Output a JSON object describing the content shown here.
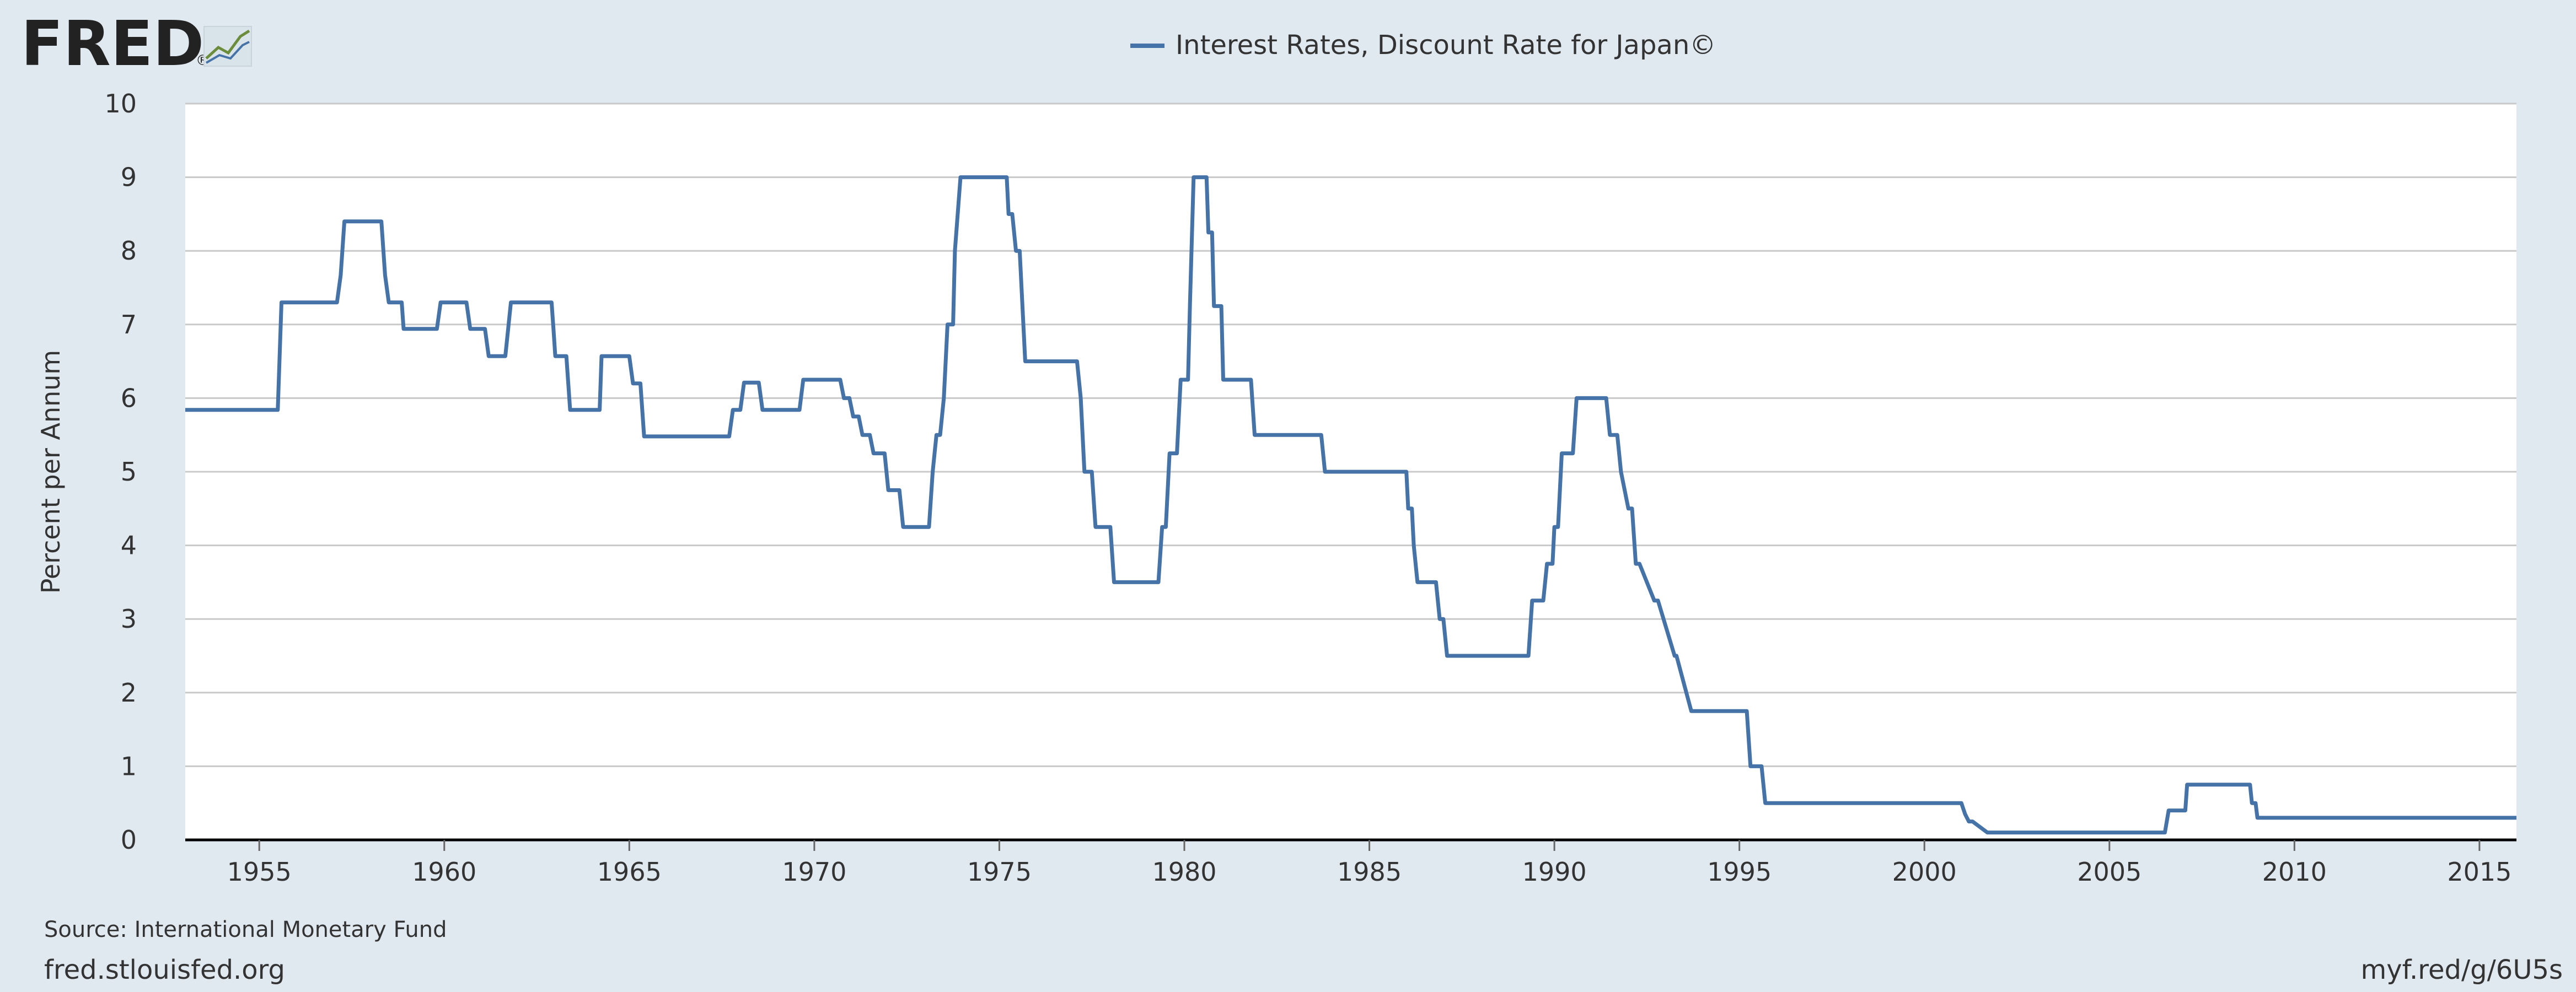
{
  "logo": {
    "text": "FRED",
    "registered": "®"
  },
  "chart_data": {
    "type": "line",
    "title": "",
    "xlabel": "",
    "ylabel": "Percent per Annum",
    "xlim": [
      1953,
      2016
    ],
    "ylim": [
      0,
      10
    ],
    "grid": true,
    "legend_position": "top-center",
    "x_ticks": [
      "1955",
      "1960",
      "1965",
      "1970",
      "1975",
      "1980",
      "1985",
      "1990",
      "1995",
      "2000",
      "2005",
      "2010",
      "2015"
    ],
    "y_ticks": [
      "0",
      "1",
      "2",
      "3",
      "4",
      "5",
      "6",
      "7",
      "8",
      "9",
      "10"
    ],
    "series": [
      {
        "name": "Interest Rates, Discount Rate for Japan©",
        "color": "#4572a7",
        "x": [
          1953.0,
          1955.5,
          1955.6,
          1957.1,
          1957.2,
          1957.3,
          1958.3,
          1958.4,
          1958.5,
          1958.85,
          1958.9,
          1959.8,
          1959.9,
          1960.6,
          1960.7,
          1961.1,
          1961.2,
          1961.65,
          1961.8,
          1962.4,
          1962.9,
          1962.95,
          1963.0,
          1963.3,
          1963.4,
          1964.2,
          1964.25,
          1965.0,
          1965.1,
          1965.3,
          1965.4,
          1967.7,
          1967.8,
          1968.0,
          1968.1,
          1968.5,
          1968.6,
          1969.6,
          1969.7,
          1970.7,
          1970.8,
          1970.95,
          1971.05,
          1971.2,
          1971.3,
          1971.5,
          1971.6,
          1971.9,
          1972.0,
          1972.3,
          1972.4,
          1973.1,
          1973.2,
          1973.3,
          1973.4,
          1973.5,
          1973.6,
          1973.75,
          1973.8,
          1973.95,
          1974.0,
          1975.2,
          1975.25,
          1975.35,
          1975.45,
          1975.55,
          1975.6,
          1975.7,
          1977.1,
          1977.2,
          1977.3,
          1977.5,
          1977.6,
          1978.0,
          1978.1,
          1979.3,
          1979.4,
          1979.5,
          1979.6,
          1979.8,
          1979.9,
          1980.1,
          1980.15,
          1980.25,
          1980.3,
          1980.6,
          1980.65,
          1980.75,
          1980.8,
          1981.0,
          1981.05,
          1981.8,
          1981.9,
          1983.7,
          1983.8,
          1986.0,
          1986.05,
          1986.15,
          1986.2,
          1986.3,
          1986.35,
          1986.8,
          1986.9,
          1987.0,
          1987.1,
          1989.3,
          1989.4,
          1989.7,
          1989.8,
          1989.95,
          1990.0,
          1990.1,
          1990.2,
          1990.5,
          1990.6,
          1991.4,
          1991.5,
          1991.7,
          1991.8,
          1992.0,
          1992.1,
          1992.2,
          1992.3,
          1992.7,
          1992.8,
          1993.25,
          1993.3,
          1993.7,
          1993.8,
          1995.2,
          1995.3,
          1995.6,
          1995.7,
          2001.0,
          2001.1,
          2001.2,
          2001.3,
          2001.7,
          2001.8,
          2006.5,
          2006.6,
          2007.05,
          2007.1,
          2008.8,
          2008.85,
          2008.95,
          2009.0,
          2016.0
        ],
        "values": [
          5.84,
          5.84,
          7.3,
          7.3,
          7.67,
          8.4,
          8.4,
          7.67,
          7.3,
          7.3,
          6.94,
          6.94,
          7.3,
          7.3,
          6.94,
          6.94,
          6.57,
          6.57,
          7.3,
          7.3,
          7.3,
          6.94,
          6.57,
          6.57,
          5.84,
          5.84,
          6.57,
          6.57,
          6.2,
          6.2,
          5.48,
          5.48,
          5.84,
          5.84,
          6.21,
          6.21,
          5.84,
          5.84,
          6.25,
          6.25,
          6.0,
          6.0,
          5.75,
          5.75,
          5.5,
          5.5,
          5.25,
          5.25,
          4.75,
          4.75,
          4.25,
          4.25,
          5.0,
          5.5,
          5.5,
          6.0,
          7.0,
          7.0,
          8.0,
          9.0,
          9.0,
          9.0,
          8.5,
          8.5,
          8.0,
          8.0,
          7.5,
          6.5,
          6.5,
          6.0,
          5.0,
          5.0,
          4.25,
          4.25,
          3.5,
          3.5,
          4.25,
          4.25,
          5.25,
          5.25,
          6.25,
          6.25,
          7.25,
          9.0,
          9.0,
          9.0,
          8.25,
          8.25,
          7.25,
          7.25,
          6.25,
          6.25,
          5.5,
          5.5,
          5.0,
          5.0,
          4.5,
          4.5,
          4.0,
          3.5,
          3.5,
          3.5,
          3.0,
          3.0,
          2.5,
          2.5,
          3.25,
          3.25,
          3.75,
          3.75,
          4.25,
          4.25,
          5.25,
          5.25,
          6.0,
          6.0,
          5.5,
          5.5,
          5.0,
          4.5,
          4.5,
          3.75,
          3.75,
          3.25,
          3.25,
          2.5,
          2.5,
          1.75,
          1.75,
          1.75,
          1.0,
          1.0,
          0.5,
          0.5,
          0.35,
          0.25,
          0.25,
          0.1,
          0.1,
          0.1,
          0.4,
          0.4,
          0.75,
          0.75,
          0.5,
          0.5,
          0.3,
          0.3
        ]
      }
    ]
  },
  "footer": {
    "source": "Source: International Monetary Fund",
    "site": "fred.stlouisfed.org",
    "short_url": "myf.red/g/6U5s"
  }
}
